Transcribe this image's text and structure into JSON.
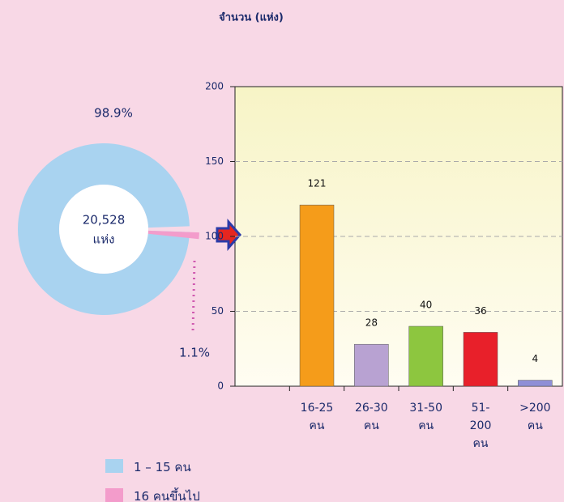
{
  "chart_data": [
    {
      "type": "pie",
      "labels": [
        "1 – 15 คน",
        "16 คนขึ้นไป"
      ],
      "values": [
        98.9,
        1.1
      ],
      "value_labels": [
        "98.9%",
        "1.1%"
      ],
      "colors": [
        "#a9d3f0",
        "#f39ccb"
      ],
      "center_text": [
        "20,528",
        "แห่ง"
      ]
    },
    {
      "type": "bar",
      "title": "จำนวน (แห่ง)",
      "categories": [
        "16-25 คน",
        "26-30 คน",
        "31-50 คน",
        "51-200 คน",
        ">200 คน"
      ],
      "values": [
        121,
        28,
        40,
        36,
        4
      ],
      "colors": [
        "#f59c1a",
        "#b8a2d2",
        "#8dc63f",
        "#e8202a",
        "#8f8fd6"
      ],
      "ylim": [
        0,
        200
      ],
      "yticks": [
        0,
        50,
        100,
        150,
        200
      ],
      "grid": true
    }
  ]
}
